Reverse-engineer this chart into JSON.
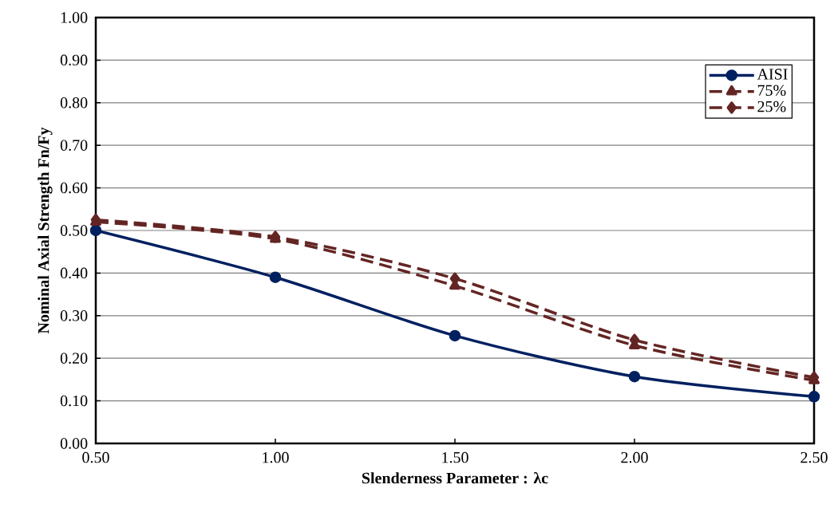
{
  "chart_data": {
    "type": "line",
    "xlabel": "Slenderness Parameter : λc",
    "ylabel": "Nominal Axial Strength Fn/Fy",
    "x": [
      0.5,
      1.0,
      1.5,
      2.0,
      2.5
    ],
    "series": [
      {
        "name": "AISI",
        "color": "#002060",
        "marker": "circle",
        "line_style": "solid",
        "values": [
          0.5,
          0.39,
          0.253,
          0.157,
          0.11
        ]
      },
      {
        "name": "75%",
        "color": "#632523",
        "marker": "triangle",
        "line_style": "dashed",
        "values": [
          0.52,
          0.48,
          0.37,
          0.23,
          0.148
        ]
      },
      {
        "name": "25%",
        "color": "#632523",
        "marker": "diamond",
        "line_style": "dashed",
        "values": [
          0.525,
          0.485,
          0.387,
          0.243,
          0.155
        ]
      }
    ],
    "xlim": [
      0.5,
      2.5
    ],
    "xticks": [
      {
        "value": 0.5,
        "label": "0.50"
      },
      {
        "value": 1.0,
        "label": "1.00"
      },
      {
        "value": 1.5,
        "label": "1.50"
      },
      {
        "value": 2.0,
        "label": "2.00"
      },
      {
        "value": 2.5,
        "label": "2.50"
      }
    ],
    "ylim": [
      0,
      1
    ],
    "yticks": [
      {
        "value": 0,
        "label": "0.00"
      },
      {
        "value": 0.1,
        "label": "0.10"
      },
      {
        "value": 0.2,
        "label": "0.20"
      },
      {
        "value": 0.3,
        "label": "0.30"
      },
      {
        "value": 0.4,
        "label": "0.40"
      },
      {
        "value": 0.5,
        "label": "0.50"
      },
      {
        "value": 0.6,
        "label": "0.60"
      },
      {
        "value": 0.7,
        "label": "0.70"
      },
      {
        "value": 0.8,
        "label": "0.80"
      },
      {
        "value": 0.9,
        "label": "0.90"
      },
      {
        "value": 1.0,
        "label": "1.00"
      }
    ],
    "grid": "y",
    "legend": "top right"
  }
}
